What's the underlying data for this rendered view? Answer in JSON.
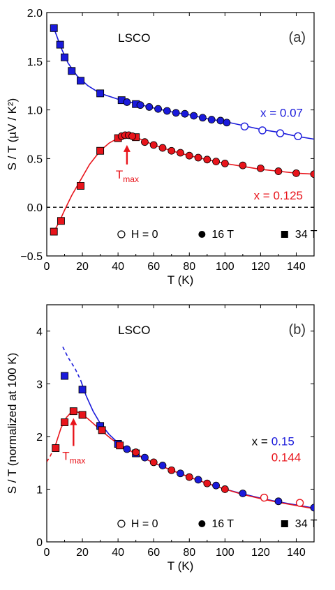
{
  "chart_data": [
    {
      "panel": "(a)",
      "type": "scatter",
      "title": "LSCO",
      "xlabel": "T (K)",
      "ylabel": "S / T (µV / K²)",
      "xlim": [
        0,
        150
      ],
      "ylim": [
        -0.5,
        2.0
      ],
      "xticks": [
        0,
        20,
        40,
        60,
        80,
        100,
        120,
        140
      ],
      "yticks": [
        -0.5,
        0.0,
        0.5,
        1.0,
        1.5,
        2.0
      ],
      "ytick_labels": [
        "−0.5",
        "0.0",
        "0.5",
        "1.0",
        "1.5",
        "2.0"
      ],
      "zero_line": true,
      "legend": [
        "H = 0",
        "16 T",
        "34 T"
      ],
      "legend_position": "bottom",
      "annotation": {
        "text": "T",
        "sub": "max",
        "x": 45
      },
      "series": [
        {
          "name": "x = 0.07",
          "color": "#1a1adb",
          "points": [
            {
              "x": 4,
              "y": 1.84,
              "m": "square"
            },
            {
              "x": 7.5,
              "y": 1.67,
              "m": "square"
            },
            {
              "x": 10,
              "y": 1.54,
              "m": "square"
            },
            {
              "x": 14,
              "y": 1.4,
              "m": "square"
            },
            {
              "x": 19,
              "y": 1.3,
              "m": "square"
            },
            {
              "x": 30,
              "y": 1.17,
              "m": "square"
            },
            {
              "x": 42,
              "y": 1.1,
              "m": "square"
            },
            {
              "x": 50,
              "y": 1.06,
              "m": "square"
            },
            {
              "x": 45,
              "y": 1.08,
              "m": "filled"
            },
            {
              "x": 52.5,
              "y": 1.05,
              "m": "filled"
            },
            {
              "x": 57.5,
              "y": 1.03,
              "m": "filled"
            },
            {
              "x": 62.5,
              "y": 1.01,
              "m": "filled"
            },
            {
              "x": 67.5,
              "y": 0.99,
              "m": "filled"
            },
            {
              "x": 72.5,
              "y": 0.97,
              "m": "filled"
            },
            {
              "x": 77.5,
              "y": 0.96,
              "m": "filled"
            },
            {
              "x": 82.5,
              "y": 0.94,
              "m": "filled"
            },
            {
              "x": 87.5,
              "y": 0.92,
              "m": "filled"
            },
            {
              "x": 92.5,
              "y": 0.9,
              "m": "filled"
            },
            {
              "x": 97.5,
              "y": 0.89,
              "m": "filled"
            },
            {
              "x": 101,
              "y": 0.87,
              "m": "filled"
            },
            {
              "x": 111,
              "y": 0.83,
              "m": "open"
            },
            {
              "x": 121,
              "y": 0.79,
              "m": "open"
            },
            {
              "x": 131,
              "y": 0.76,
              "m": "open"
            },
            {
              "x": 141,
              "y": 0.73,
              "m": "open"
            }
          ],
          "curve": [
            [
              4,
              1.84
            ],
            [
              8,
              1.64
            ],
            [
              12,
              1.48
            ],
            [
              17,
              1.35
            ],
            [
              23,
              1.25
            ],
            [
              30,
              1.17
            ],
            [
              40,
              1.11
            ],
            [
              50,
              1.065
            ],
            [
              60,
              1.02
            ],
            [
              70,
              0.98
            ],
            [
              80,
              0.95
            ],
            [
              90,
              0.91
            ],
            [
              100,
              0.88
            ],
            [
              110,
              0.84
            ],
            [
              120,
              0.8
            ],
            [
              130,
              0.77
            ],
            [
              140,
              0.73
            ],
            [
              150,
              0.7
            ]
          ]
        },
        {
          "name": "x = 0.125",
          "color": "#e8141b",
          "points": [
            {
              "x": 4,
              "y": -0.25,
              "m": "square"
            },
            {
              "x": 8,
              "y": -0.14,
              "m": "square"
            },
            {
              "x": 19,
              "y": 0.22,
              "m": "square"
            },
            {
              "x": 30,
              "y": 0.58,
              "m": "square"
            },
            {
              "x": 40,
              "y": 0.71,
              "m": "square"
            },
            {
              "x": 50,
              "y": 0.72,
              "m": "square"
            },
            {
              "x": 42,
              "y": 0.73,
              "m": "filled"
            },
            {
              "x": 44,
              "y": 0.74,
              "m": "filled"
            },
            {
              "x": 46,
              "y": 0.74,
              "m": "filled"
            },
            {
              "x": 48,
              "y": 0.73,
              "m": "filled"
            },
            {
              "x": 55,
              "y": 0.67,
              "m": "filled"
            },
            {
              "x": 60,
              "y": 0.64,
              "m": "filled"
            },
            {
              "x": 65,
              "y": 0.61,
              "m": "filled"
            },
            {
              "x": 70,
              "y": 0.58,
              "m": "filled"
            },
            {
              "x": 75,
              "y": 0.56,
              "m": "filled"
            },
            {
              "x": 80,
              "y": 0.53,
              "m": "filled"
            },
            {
              "x": 85,
              "y": 0.51,
              "m": "filled"
            },
            {
              "x": 90,
              "y": 0.49,
              "m": "filled"
            },
            {
              "x": 95,
              "y": 0.47,
              "m": "filled"
            },
            {
              "x": 100,
              "y": 0.45,
              "m": "filled"
            },
            {
              "x": 110,
              "y": 0.43,
              "m": "filled"
            },
            {
              "x": 120,
              "y": 0.4,
              "m": "filled"
            },
            {
              "x": 130,
              "y": 0.37,
              "m": "filled"
            },
            {
              "x": 140,
              "y": 0.35,
              "m": "filled"
            },
            {
              "x": 150,
              "y": 0.34,
              "m": "filled"
            }
          ],
          "curve": [
            [
              4,
              -0.25
            ],
            [
              7,
              -0.15
            ],
            [
              10,
              -0.03
            ],
            [
              14,
              0.12
            ],
            [
              19,
              0.28
            ],
            [
              24,
              0.44
            ],
            [
              30,
              0.58
            ],
            [
              35,
              0.66
            ],
            [
              40,
              0.71
            ],
            [
              45,
              0.73
            ],
            [
              50,
              0.72
            ],
            [
              55,
              0.68
            ],
            [
              60,
              0.64
            ],
            [
              70,
              0.58
            ],
            [
              80,
              0.53
            ],
            [
              90,
              0.49
            ],
            [
              100,
              0.45
            ],
            [
              110,
              0.42
            ],
            [
              120,
              0.39
            ],
            [
              130,
              0.37
            ],
            [
              140,
              0.35
            ],
            [
              150,
              0.34
            ]
          ]
        }
      ]
    },
    {
      "panel": "(b)",
      "type": "scatter",
      "title": "LSCO",
      "xlabel": "T (K)",
      "ylabel": "S / T (normalized at 100 K)",
      "xlim": [
        0,
        150
      ],
      "ylim": [
        0,
        4.5
      ],
      "xticks": [
        0,
        20,
        40,
        60,
        80,
        100,
        120,
        140
      ],
      "yticks": [
        0,
        1,
        2,
        3,
        4
      ],
      "ytick_labels": [
        "0",
        "1",
        "2",
        "3",
        "4"
      ],
      "zero_line": false,
      "legend": [
        "H = 0",
        "16 T",
        "34 T"
      ],
      "legend_position": "bottom",
      "annotation": {
        "text": "T",
        "sub": "max",
        "x": 15
      },
      "label_prefix": "x = ",
      "series": [
        {
          "name": "0.15",
          "color": "#1a1adb",
          "points": [
            {
              "x": 10,
              "y": 3.15,
              "m": "square"
            },
            {
              "x": 20,
              "y": 2.89,
              "m": "square"
            },
            {
              "x": 30,
              "y": 2.2,
              "m": "square"
            },
            {
              "x": 40,
              "y": 1.86,
              "m": "square"
            },
            {
              "x": 50,
              "y": 1.68,
              "m": "square"
            },
            {
              "x": 45,
              "y": 1.76,
              "m": "filled"
            },
            {
              "x": 55,
              "y": 1.6,
              "m": "filled"
            },
            {
              "x": 65,
              "y": 1.45,
              "m": "filled"
            },
            {
              "x": 75,
              "y": 1.3,
              "m": "filled"
            },
            {
              "x": 85,
              "y": 1.18,
              "m": "filled"
            },
            {
              "x": 95,
              "y": 1.07,
              "m": "filled"
            },
            {
              "x": 110,
              "y": 0.92,
              "m": "filled"
            },
            {
              "x": 130,
              "y": 0.77,
              "m": "filled"
            },
            {
              "x": 150,
              "y": 0.65,
              "m": "filled"
            }
          ],
          "curve": [
            [
              19,
              3.07
            ],
            [
              22,
              2.78
            ],
            [
              26,
              2.48
            ],
            [
              30,
              2.25
            ],
            [
              35,
              2.04
            ],
            [
              40,
              1.88
            ],
            [
              50,
              1.66
            ],
            [
              60,
              1.5
            ],
            [
              70,
              1.36
            ],
            [
              80,
              1.23
            ],
            [
              90,
              1.11
            ],
            [
              100,
              1.0
            ],
            [
              110,
              0.91
            ],
            [
              120,
              0.83
            ],
            [
              130,
              0.76
            ],
            [
              140,
              0.7
            ],
            [
              150,
              0.64
            ]
          ],
          "dashed": [
            [
              9,
              3.7
            ],
            [
              12,
              3.5
            ],
            [
              16,
              3.28
            ],
            [
              19,
              3.07
            ]
          ]
        },
        {
          "name": "0.144",
          "color": "#e8141b",
          "points": [
            {
              "x": 5,
              "y": 1.78,
              "m": "square"
            },
            {
              "x": 10,
              "y": 2.27,
              "m": "square"
            },
            {
              "x": 15,
              "y": 2.48,
              "m": "square"
            },
            {
              "x": 20,
              "y": 2.41,
              "m": "square"
            },
            {
              "x": 31,
              "y": 2.12,
              "m": "square"
            },
            {
              "x": 41,
              "y": 1.83,
              "m": "square"
            },
            {
              "x": 50,
              "y": 1.7,
              "m": "filled"
            },
            {
              "x": 60,
              "y": 1.51,
              "m": "filled"
            },
            {
              "x": 70,
              "y": 1.36,
              "m": "filled"
            },
            {
              "x": 80,
              "y": 1.23,
              "m": "filled"
            },
            {
              "x": 90,
              "y": 1.11,
              "m": "filled"
            },
            {
              "x": 100,
              "y": 1.0,
              "m": "filled"
            },
            {
              "x": 122,
              "y": 0.84,
              "m": "open"
            },
            {
              "x": 142,
              "y": 0.74,
              "m": "open"
            }
          ],
          "curve": [
            [
              5,
              1.85
            ],
            [
              8,
              2.16
            ],
            [
              11,
              2.36
            ],
            [
              14,
              2.47
            ],
            [
              16,
              2.48
            ],
            [
              19,
              2.44
            ],
            [
              23,
              2.34
            ],
            [
              27,
              2.22
            ],
            [
              31,
              2.1
            ],
            [
              36,
              1.96
            ],
            [
              41,
              1.84
            ],
            [
              50,
              1.67
            ],
            [
              60,
              1.5
            ],
            [
              70,
              1.36
            ],
            [
              80,
              1.23
            ],
            [
              90,
              1.11
            ],
            [
              100,
              1.0
            ],
            [
              110,
              0.9
            ],
            [
              120,
              0.82
            ],
            [
              130,
              0.75
            ],
            [
              140,
              0.69
            ],
            [
              150,
              0.63
            ]
          ],
          "dashed": [
            [
              0,
              1.52
            ],
            [
              2,
              1.63
            ],
            [
              5,
              1.85
            ]
          ]
        }
      ]
    }
  ]
}
